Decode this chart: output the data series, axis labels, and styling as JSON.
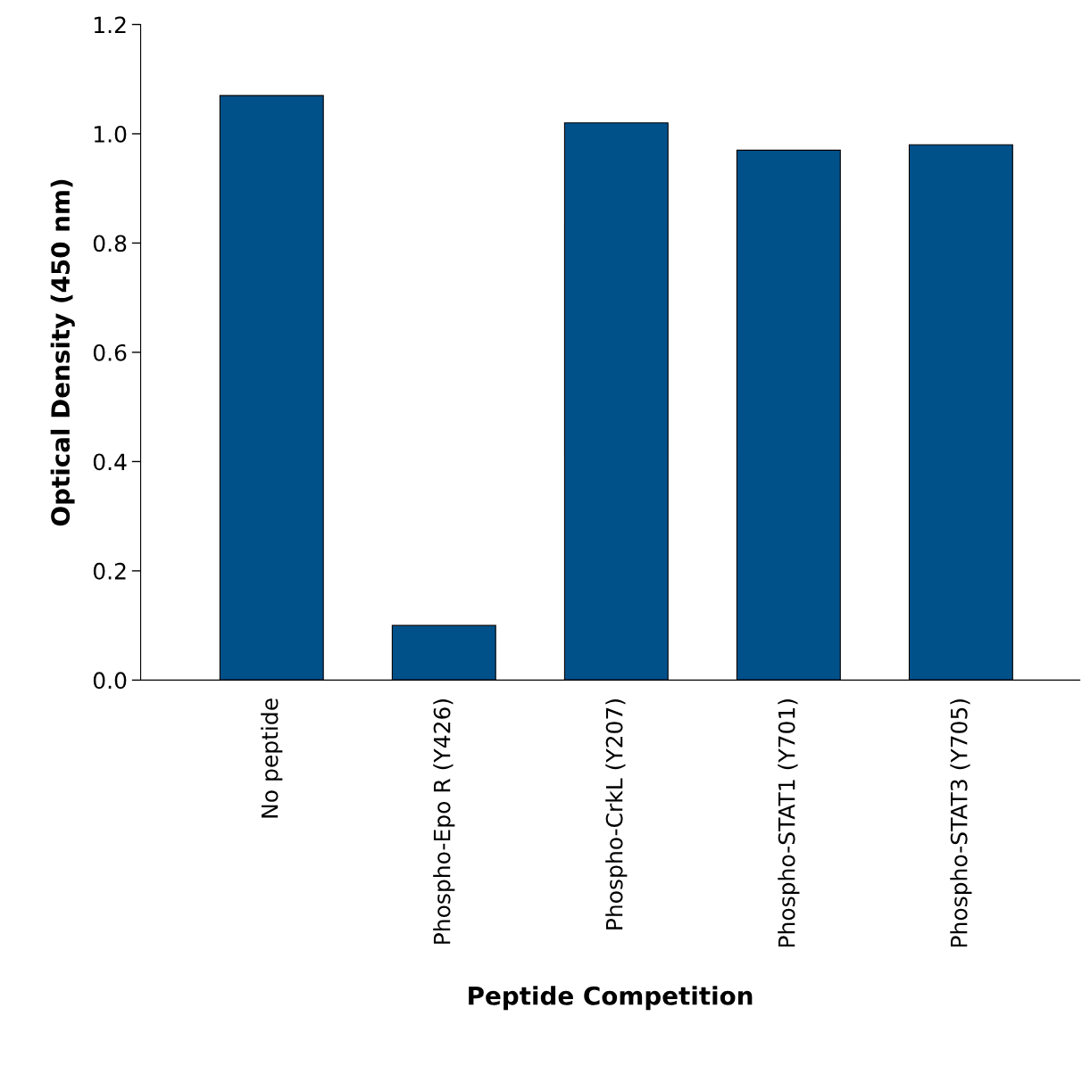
{
  "chart_data": {
    "type": "bar",
    "xlabel": "Peptide Competition",
    "ylabel": "Optical Density (450 nm)",
    "categories": [
      "No peptide",
      "Phospho-Epo R (Y426)",
      "Phospho-CrkL (Y207)",
      "Phospho-STAT1 (Y701)",
      "Phospho-STAT3 (Y705)"
    ],
    "values": [
      1.07,
      0.1,
      1.02,
      0.97,
      0.98
    ],
    "color": "#00508a",
    "ylim": [
      0,
      1.2
    ],
    "yticks": [
      {
        "value": 0,
        "label": "0.0"
      },
      0.2,
      0.4,
      0.6,
      0.8,
      {
        "value": 1,
        "label": "1.0"
      },
      1.2
    ],
    "grid": false,
    "legend": false
  }
}
